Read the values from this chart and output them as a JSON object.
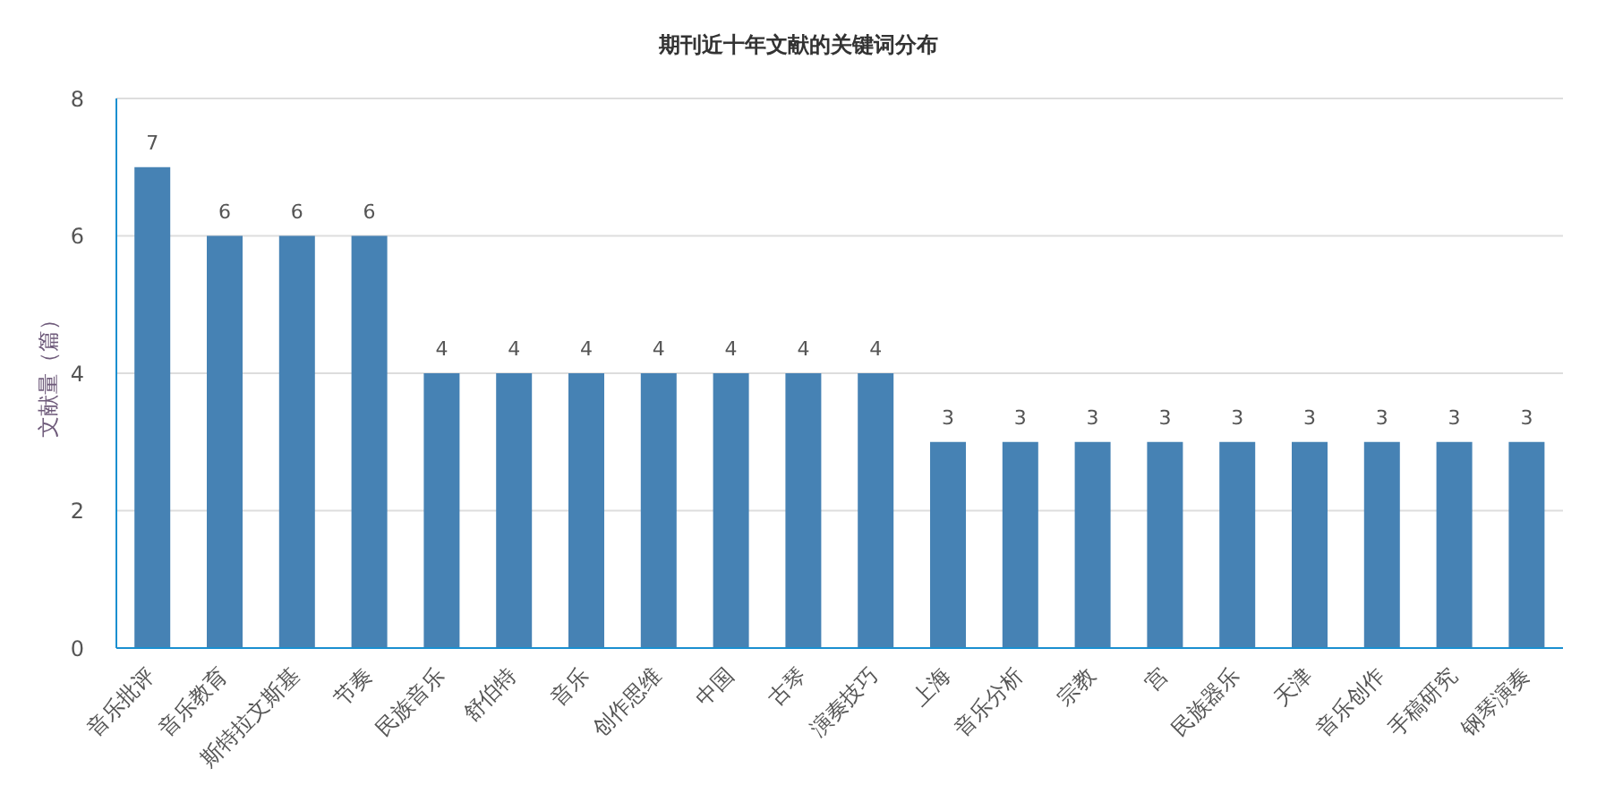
{
  "chart_data": {
    "type": "bar",
    "title": "期刊近十年文献的关键词分布",
    "ylabel": "文献量（篇）",
    "categories": [
      "音乐批评",
      "音乐教育",
      "斯特拉文斯基",
      "节奏",
      "民族音乐",
      "舒伯特",
      "音乐",
      "创作思维",
      "中国",
      "古琴",
      "演奏技巧",
      "上海",
      "音乐分析",
      "宗教",
      "宫",
      "民族器乐",
      "天津",
      "音乐创作",
      "手稿研究",
      "钢琴演奏"
    ],
    "values": [
      7,
      6,
      6,
      6,
      4,
      4,
      4,
      4,
      4,
      4,
      4,
      3,
      3,
      3,
      3,
      3,
      3,
      3,
      3,
      3
    ],
    "color": "#4682b4",
    "ylim": [
      0,
      8
    ],
    "yticks": [
      0,
      2,
      4,
      6,
      8
    ],
    "grid": "y",
    "data_labels": true
  }
}
